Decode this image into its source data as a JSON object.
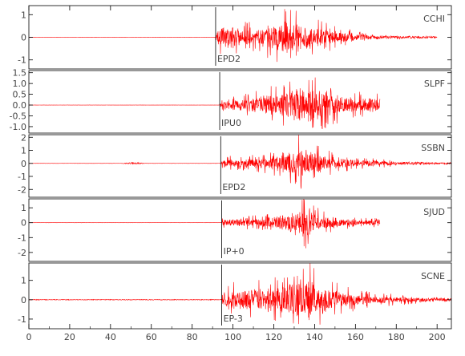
{
  "chart_data": {
    "type": "line",
    "x_axis": {
      "min": 0,
      "max": 207,
      "ticks": [
        0,
        20,
        40,
        60,
        80,
        100,
        120,
        140,
        160,
        180,
        200
      ],
      "tick_labels": [
        "0",
        "20",
        "40",
        "60",
        "80",
        "100",
        "120",
        "140",
        "160",
        "180",
        "200"
      ]
    },
    "colors": {
      "trace": "#ff0000",
      "frame": "#000000",
      "pick": "#000000",
      "text": "#444444"
    },
    "panels": [
      {
        "station": "CCHI",
        "pick_label": "EPD2",
        "pick_time": 91.5,
        "ylim": [
          -1.4,
          1.4
        ],
        "yticks": [
          -1,
          0,
          1
        ],
        "ytick_labels": [
          "-1",
          "0",
          "1"
        ],
        "trace_end": 200,
        "envelope": [
          [
            0,
            0.005
          ],
          [
            91.5,
            0.005
          ],
          [
            92,
            0.55
          ],
          [
            96,
            0.75
          ],
          [
            110,
            0.55
          ],
          [
            118,
            0.8
          ],
          [
            125,
            1.1
          ],
          [
            130,
            1.2
          ],
          [
            136,
            0.9
          ],
          [
            145,
            0.55
          ],
          [
            160,
            0.25
          ],
          [
            175,
            0.12
          ],
          [
            200,
            0.07
          ]
        ],
        "bursts": []
      },
      {
        "station": "SLPF",
        "pick_label": "IPU0",
        "pick_time": 93.5,
        "ylim": [
          -1.3,
          1.6
        ],
        "yticks": [
          -1.0,
          -0.5,
          0.0,
          0.5,
          1.0,
          1.5
        ],
        "ytick_labels": [
          "-1.0",
          "-0.5",
          "0.0",
          "0.5",
          "1.0",
          "1.5"
        ],
        "trace_end": 172,
        "envelope": [
          [
            0,
            0.005
          ],
          [
            93.5,
            0.005
          ],
          [
            94,
            0.2
          ],
          [
            100,
            0.35
          ],
          [
            110,
            0.5
          ],
          [
            120,
            0.8
          ],
          [
            130,
            1.1
          ],
          [
            138,
            1.3
          ],
          [
            145,
            0.9
          ],
          [
            155,
            0.6
          ],
          [
            165,
            0.5
          ],
          [
            172,
            0.45
          ]
        ],
        "bursts": []
      },
      {
        "station": "SSBN",
        "pick_label": "EPD2",
        "pick_time": 94,
        "ylim": [
          -2.6,
          2.2
        ],
        "yticks": [
          -2,
          -1,
          0,
          1,
          2
        ],
        "ytick_labels": [
          "-2",
          "-1",
          "0",
          "1",
          "2"
        ],
        "trace_end": 207,
        "envelope": [
          [
            0,
            0.01
          ],
          [
            94,
            0.01
          ],
          [
            95,
            0.5
          ],
          [
            102,
            0.5
          ],
          [
            115,
            0.6
          ],
          [
            125,
            1.0
          ],
          [
            132,
            1.9
          ],
          [
            138,
            1.5
          ],
          [
            145,
            0.9
          ],
          [
            160,
            0.45
          ],
          [
            180,
            0.2
          ],
          [
            207,
            0.12
          ]
        ],
        "bursts": [
          [
            45,
            58,
            0.15
          ]
        ]
      },
      {
        "station": "SJUD",
        "pick_label": "IP+0",
        "pick_time": 94.5,
        "ylim": [
          -2.6,
          1.6
        ],
        "yticks": [
          -2,
          -1,
          0,
          1
        ],
        "ytick_labels": [
          "-2",
          "-1",
          "0",
          "1"
        ],
        "trace_end": 172,
        "envelope": [
          [
            0,
            0.005
          ],
          [
            94.5,
            0.005
          ],
          [
            95,
            0.3
          ],
          [
            102,
            0.4
          ],
          [
            115,
            0.45
          ],
          [
            125,
            0.8
          ],
          [
            132,
            1.1
          ],
          [
            136,
            1.6
          ],
          [
            142,
            0.8
          ],
          [
            155,
            0.35
          ],
          [
            172,
            0.25
          ]
        ],
        "bursts": []
      },
      {
        "station": "SCNE",
        "pick_label": "EP-3",
        "pick_time": 94.5,
        "ylim": [
          -1.5,
          1.9
        ],
        "yticks": [
          -1,
          0,
          1
        ],
        "ytick_labels": [
          "-1",
          "0",
          "1"
        ],
        "trace_end": 207,
        "envelope": [
          [
            0,
            0.03
          ],
          [
            94.5,
            0.03
          ],
          [
            95,
            0.7
          ],
          [
            105,
            0.85
          ],
          [
            115,
            0.9
          ],
          [
            125,
            1.1
          ],
          [
            132,
            1.5
          ],
          [
            136,
            1.8
          ],
          [
            142,
            1.2
          ],
          [
            155,
            0.6
          ],
          [
            170,
            0.3
          ],
          [
            190,
            0.2
          ],
          [
            207,
            0.15
          ]
        ],
        "bursts": []
      }
    ]
  }
}
